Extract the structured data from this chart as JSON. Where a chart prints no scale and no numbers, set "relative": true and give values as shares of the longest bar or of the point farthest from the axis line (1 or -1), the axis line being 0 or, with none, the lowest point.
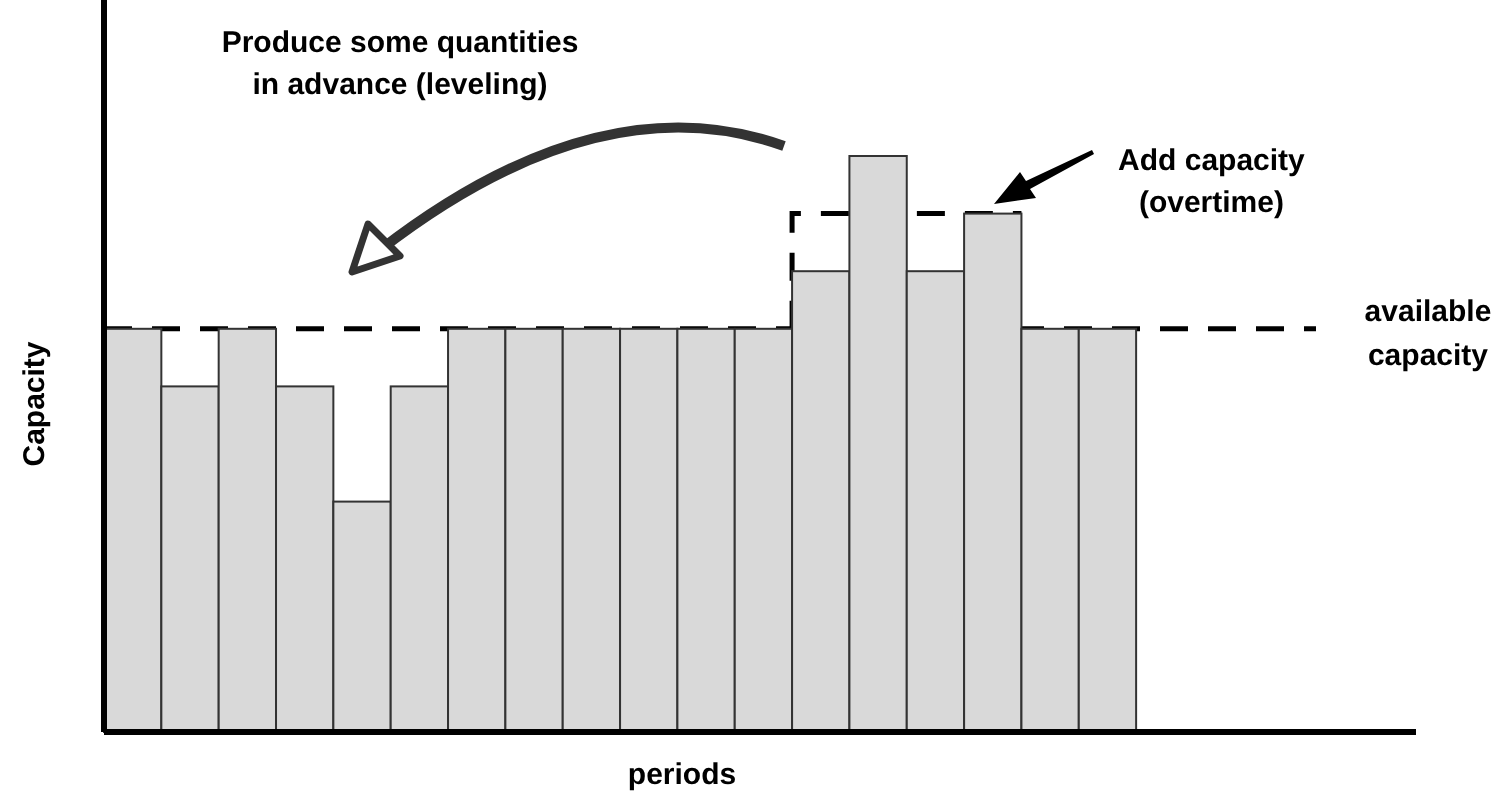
{
  "chart_data": {
    "type": "bar",
    "relative": true,
    "xlabel": "periods",
    "ylabel": "Capacity",
    "categories": [
      null,
      null,
      null,
      null,
      null,
      null,
      null,
      null,
      null,
      null,
      null,
      null,
      null,
      null,
      null,
      null,
      null,
      null
    ],
    "values": [
      0.7,
      0.6,
      0.7,
      0.6,
      0.4,
      0.6,
      0.7,
      0.7,
      0.7,
      0.7,
      0.7,
      0.7,
      0.8,
      1,
      0.8,
      0.9,
      0.7,
      0.7
    ],
    "color": "#d9d9d9",
    "ref_lines": [
      {
        "axis": "y",
        "value": 0.7,
        "label": "available capacity",
        "color": "#000000",
        "line_style": "dashed"
      },
      {
        "axis": "y",
        "value": 0.9,
        "label": "Add capacity (overtime)",
        "color": "#000000",
        "line_style": "dashed"
      }
    ],
    "annotations": [
      "Produce some quantities in advance (leveling)"
    ]
  }
}
